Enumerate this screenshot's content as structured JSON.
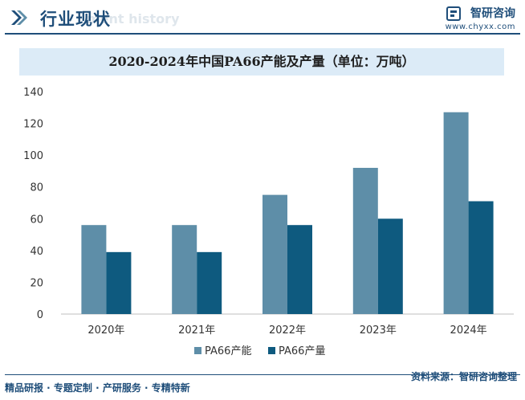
{
  "header": {
    "title": "行业现状",
    "subtitle": "ment history",
    "brand_name": "智研咨询",
    "brand_url": "www.chyxx.com"
  },
  "footer": {
    "slogan": "精品研报 · 专题定制 · 产研服务 · 专精特新",
    "source": "资料来源：智研咨询整理"
  },
  "colors": {
    "brand": "#1f4e7a",
    "capacity": "#5e8ea8",
    "output": "#0e5a7f"
  },
  "chart_data": {
    "type": "bar",
    "title": "2020-2024年中国PA66产能及产量（单位：万吨）",
    "categories": [
      "2020年",
      "2021年",
      "2022年",
      "2023年",
      "2024年"
    ],
    "series": [
      {
        "name": "PA66产能",
        "values": [
          56,
          56,
          75,
          92,
          127
        ],
        "color": "#5e8ea8"
      },
      {
        "name": "PA66产量",
        "values": [
          39,
          39,
          56,
          60,
          71
        ],
        "color": "#0e5a7f"
      }
    ],
    "ylim": [
      0,
      140
    ],
    "yticks": [
      0,
      20,
      40,
      60,
      80,
      100,
      120,
      140
    ],
    "grid": false,
    "legend": "bottom"
  }
}
